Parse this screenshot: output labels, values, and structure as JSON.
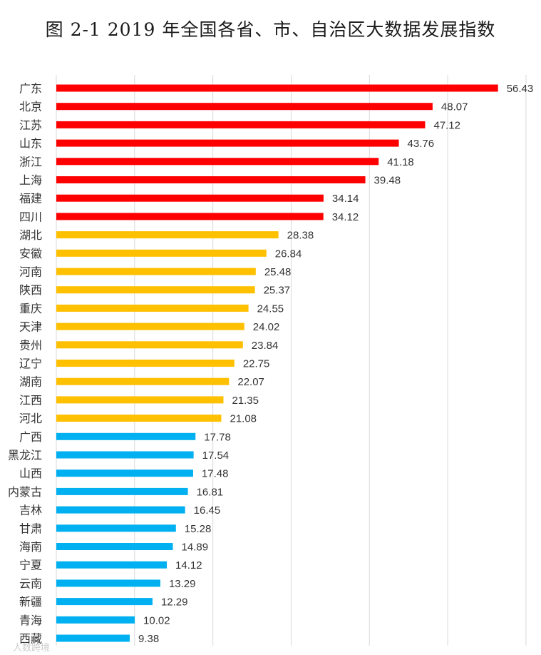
{
  "chart_data": {
    "type": "bar",
    "orientation": "horizontal",
    "title": "图 2-1 2019 年全国各省、市、自治区大数据发展指数",
    "xlabel": "",
    "ylabel": "",
    "xlim": [
      0,
      60
    ],
    "grid": true,
    "categories": [
      "广东",
      "北京",
      "江苏",
      "山东",
      "浙江",
      "上海",
      "福建",
      "四川",
      "湖北",
      "安徽",
      "河南",
      "陕西",
      "重庆",
      "天津",
      "贵州",
      "辽宁",
      "湖南",
      "江西",
      "河北",
      "广西",
      "黑龙江",
      "山西",
      "内蒙古",
      "吉林",
      "甘肃",
      "海南",
      "宁夏",
      "云南",
      "新疆",
      "青海",
      "西藏"
    ],
    "values": [
      56.43,
      48.07,
      47.12,
      43.76,
      41.18,
      39.48,
      34.14,
      34.12,
      28.38,
      26.84,
      25.48,
      25.37,
      24.55,
      24.02,
      23.84,
      22.75,
      22.07,
      21.35,
      21.08,
      17.78,
      17.54,
      17.48,
      16.81,
      16.45,
      15.28,
      14.89,
      14.12,
      13.29,
      12.29,
      10.02,
      9.38
    ],
    "value_labels": [
      "56.43",
      "48.07",
      "47.12",
      "43.76",
      "41.18",
      "39.48",
      "34.14",
      "34.12",
      "28.38",
      "26.84",
      "25.48",
      "25.37",
      "24.55",
      "24.02",
      "23.84",
      "22.75",
      "22.07",
      "21.35",
      "21.08",
      "17.78",
      "17.54",
      "17.48",
      "16.81",
      "16.45",
      "15.28",
      "14.89",
      "14.12",
      "13.29",
      "12.29",
      "10.02",
      "9.38"
    ],
    "groups": [
      {
        "name": "top",
        "color": "#ff0000",
        "count": 8
      },
      {
        "name": "middle",
        "color": "#ffc000",
        "count": 11
      },
      {
        "name": "bottom",
        "color": "#00b0f0",
        "count": 12
      }
    ]
  },
  "watermark": "人数跨境"
}
